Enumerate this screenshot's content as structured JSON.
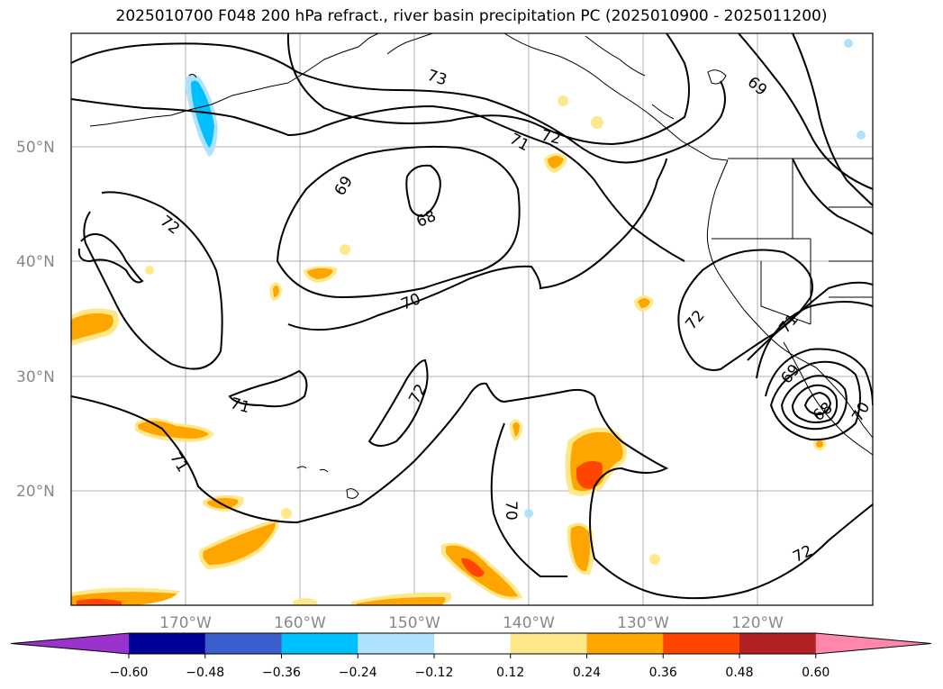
{
  "title": "2025010700 F048 200 hPa refract., river basin precipitation PC (2025010900 - 2025011200)",
  "latitude_labels": [
    "50°N",
    "40°N",
    "30°N",
    "20°N"
  ],
  "longitude_labels": [
    "170°W",
    "160°W",
    "150°W",
    "140°W",
    "130°W",
    "120°W"
  ],
  "colorbar": {
    "tick_labels": [
      "−0.60",
      "−0.48",
      "−0.36",
      "−0.24",
      "−0.12",
      "0.12",
      "0.24",
      "0.36",
      "0.48",
      "0.60"
    ],
    "colors": [
      "#9933cc",
      "#000099",
      "#3a5fcd",
      "#00bfff",
      "#b0e2ff",
      "#ffffff",
      "#ffe88a",
      "#ffa500",
      "#ff4500",
      "#b22222",
      "#ff88aa"
    ]
  },
  "contour_labels": [
    "73",
    "72",
    "71",
    "69",
    "68",
    "72",
    "70",
    "72",
    "71",
    "72",
    "71",
    "69",
    "68",
    "70",
    "70",
    "71",
    "69",
    "72"
  ]
}
